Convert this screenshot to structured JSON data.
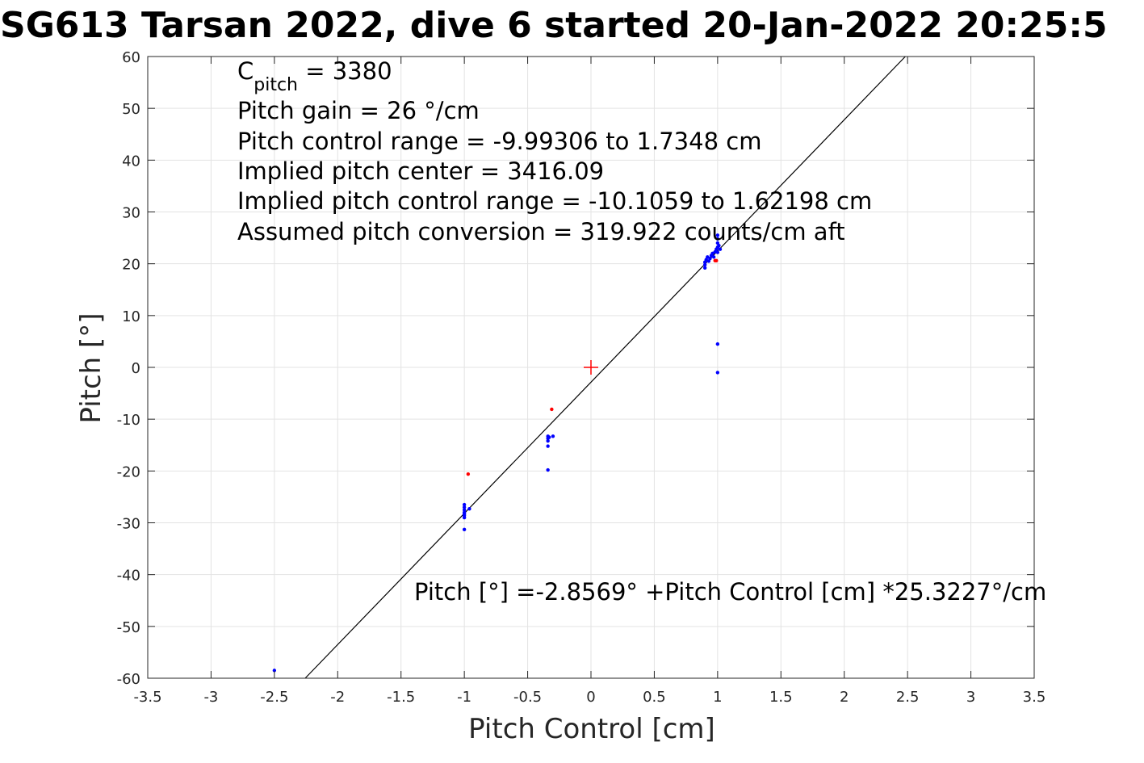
{
  "chart_data": {
    "type": "scatter",
    "title": "SG613 Tarsan 2022, dive 6 started 20-Jan-2022 20:25:5",
    "xlabel": "Pitch Control [cm]",
    "ylabel": "Pitch [°]",
    "xlim": [
      -3.5,
      3.5
    ],
    "ylim": [
      -60,
      60
    ],
    "x_ticks": [
      -3.5,
      -3,
      -2.5,
      -2,
      -1.5,
      -1,
      -0.5,
      0,
      0.5,
      1,
      1.5,
      2,
      2.5,
      3,
      3.5
    ],
    "x_tick_labels": [
      "-3.5",
      "-3",
      "-2.5",
      "-2",
      "-1.5",
      "-1",
      "-0.5",
      "0",
      "0.5",
      "1",
      "1.5",
      "2",
      "2.5",
      "3",
      "3.5"
    ],
    "y_ticks": [
      -60,
      -50,
      -40,
      -30,
      -20,
      -10,
      0,
      10,
      20,
      30,
      40,
      50,
      60
    ],
    "y_tick_labels": [
      "-60",
      "-50",
      "-40",
      "-30",
      "-20",
      "-10",
      "0",
      "10",
      "20",
      "30",
      "40",
      "50",
      "60"
    ],
    "grid": true,
    "series": [
      {
        "color": "#0000ff",
        "points": [
          [
            -2.5,
            -58.5
          ],
          [
            -1.0,
            -26.5
          ],
          [
            -1.0,
            -27.0
          ],
          [
            -1.0,
            -27.5
          ],
          [
            -1.0,
            -28.0
          ],
          [
            -1.0,
            -28.3
          ],
          [
            -1.0,
            -28.6
          ],
          [
            -1.0,
            -29.0
          ],
          [
            -1.0,
            -31.3
          ],
          [
            -0.96,
            -27.3
          ],
          [
            -0.34,
            -13.3
          ],
          [
            -0.34,
            -13.7
          ],
          [
            -0.34,
            -14.2
          ],
          [
            -0.34,
            -15.2
          ],
          [
            -0.33,
            -13.5
          ],
          [
            -0.34,
            -19.8
          ],
          [
            -0.3,
            -13.3
          ],
          [
            0.9,
            19.2
          ],
          [
            0.9,
            19.8
          ],
          [
            0.9,
            20.3
          ],
          [
            0.91,
            20.8
          ],
          [
            0.92,
            21.3
          ],
          [
            0.93,
            20.5
          ],
          [
            0.94,
            21.0
          ],
          [
            0.95,
            21.6
          ],
          [
            0.96,
            22.0
          ],
          [
            0.97,
            21.3
          ],
          [
            0.98,
            22.3
          ],
          [
            0.99,
            22.8
          ],
          [
            1.0,
            22.2
          ],
          [
            1.0,
            23.2
          ],
          [
            1.0,
            24.0
          ],
          [
            1.0,
            24.8
          ],
          [
            1.0,
            25.5
          ],
          [
            1.01,
            23.5
          ],
          [
            1.02,
            22.8
          ],
          [
            1.0,
            4.5
          ],
          [
            1.0,
            -1.0
          ]
        ]
      },
      {
        "color": "#ff0000",
        "points": [
          [
            -0.97,
            -20.6
          ],
          [
            -0.31,
            -8.1
          ],
          [
            0.98,
            20.6
          ],
          [
            0.99,
            20.6
          ]
        ]
      }
    ],
    "center_marker": {
      "x": 0,
      "y": 0,
      "color": "#ff0000"
    },
    "fit_line": {
      "intercept": -2.8569,
      "slope": 25.3227,
      "color": "#000000"
    },
    "annotations": {
      "cpitch_symbol": "C",
      "cpitch_subscript": "pitch",
      "cpitch_value": " = 3380",
      "lines": [
        "Pitch gain = 26 °/cm",
        "Pitch control range = -9.99306 to 1.7348 cm",
        "Implied pitch center = 3416.09",
        "Implied pitch control range = -10.1059 to 1.62198 cm",
        "Assumed pitch conversion = 319.922 counts/cm aft"
      ],
      "fit_text": "Pitch [°] =-2.8569° +Pitch Control [cm] *25.3227°/cm"
    }
  }
}
